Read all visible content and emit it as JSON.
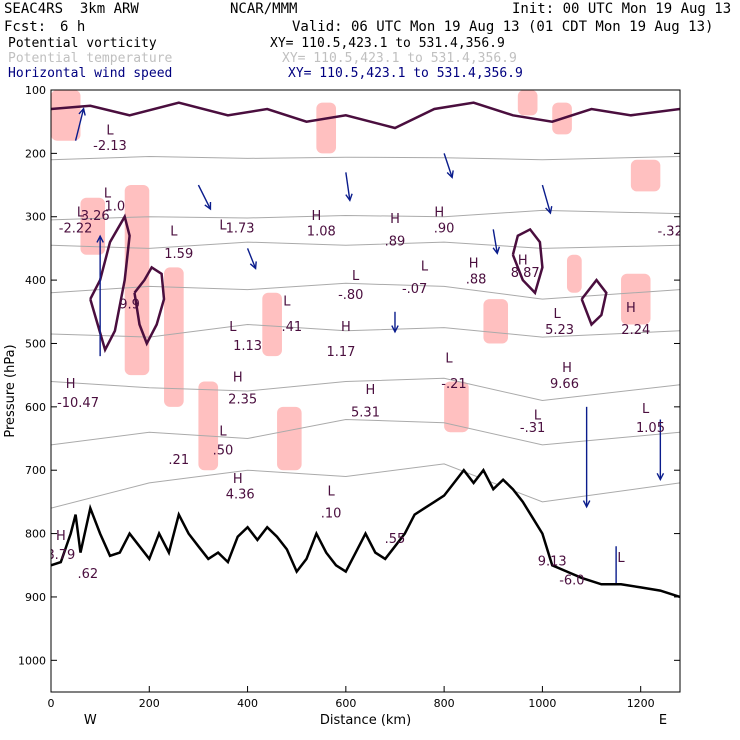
{
  "header": {
    "model": "SEAC4RS  3km ARW",
    "center": "NCAR/MMM",
    "init": "Init: 00 UTC Mon 19 Aug 13",
    "fcst_label": "Fcst:",
    "fcst_value": "6 h",
    "valid": "Valid: 06 UTC Mon 19 Aug 13 (01 CDT Mon 19 Aug 13)",
    "fields": [
      {
        "name": "Potential vorticity",
        "xy": "XY= 110.5,423.1 to 531.4,356.9",
        "color": "#000000"
      },
      {
        "name": "Potential temperature",
        "xy": "XY= 110.5,423.1 to 531.4,356.9",
        "color": "#c0c0c0"
      },
      {
        "name": "Horizontal wind speed",
        "xy": "XY= 110.5,423.1 to 531.4,356.9",
        "color": "#000080"
      }
    ]
  },
  "chart_data": {
    "type": "cross-section",
    "xlabel": "Distance (km)",
    "ylabel": "Pressure (hPa)",
    "xlim": [
      0,
      1280
    ],
    "ylim": [
      1050,
      100
    ],
    "x_ticks": [
      0,
      200,
      400,
      600,
      800,
      1000,
      1200
    ],
    "y_ticks": [
      100,
      200,
      300,
      400,
      500,
      600,
      700,
      800,
      900,
      1000
    ],
    "x_end_labels": {
      "left": "W",
      "right": "E"
    },
    "colors": {
      "pv_contour": "#4a0e3e",
      "pv_fill": "#ffc0c0",
      "theta": "#aaaaaa",
      "wind": "#0a1c8c",
      "terrain": "#000000"
    },
    "terrain": [
      [
        0,
        850
      ],
      [
        20,
        845
      ],
      [
        40,
        800
      ],
      [
        50,
        770
      ],
      [
        60,
        830
      ],
      [
        80,
        760
      ],
      [
        100,
        800
      ],
      [
        120,
        835
      ],
      [
        140,
        830
      ],
      [
        160,
        800
      ],
      [
        180,
        820
      ],
      [
        200,
        840
      ],
      [
        220,
        800
      ],
      [
        240,
        830
      ],
      [
        260,
        770
      ],
      [
        280,
        800
      ],
      [
        300,
        820
      ],
      [
        320,
        840
      ],
      [
        340,
        830
      ],
      [
        360,
        845
      ],
      [
        380,
        805
      ],
      [
        400,
        790
      ],
      [
        420,
        810
      ],
      [
        440,
        790
      ],
      [
        460,
        805
      ],
      [
        480,
        825
      ],
      [
        500,
        860
      ],
      [
        520,
        840
      ],
      [
        540,
        800
      ],
      [
        560,
        830
      ],
      [
        580,
        850
      ],
      [
        600,
        860
      ],
      [
        620,
        830
      ],
      [
        640,
        800
      ],
      [
        660,
        830
      ],
      [
        680,
        840
      ],
      [
        700,
        820
      ],
      [
        720,
        800
      ],
      [
        740,
        770
      ],
      [
        760,
        760
      ],
      [
        780,
        750
      ],
      [
        800,
        740
      ],
      [
        820,
        720
      ],
      [
        840,
        700
      ],
      [
        860,
        720
      ],
      [
        880,
        700
      ],
      [
        900,
        730
      ],
      [
        920,
        715
      ],
      [
        940,
        730
      ],
      [
        960,
        750
      ],
      [
        980,
        775
      ],
      [
        1000,
        800
      ],
      [
        1020,
        850
      ],
      [
        1050,
        860
      ],
      [
        1080,
        870
      ],
      [
        1120,
        880
      ],
      [
        1160,
        880
      ],
      [
        1200,
        885
      ],
      [
        1240,
        890
      ],
      [
        1280,
        900
      ]
    ],
    "theta_levels": [
      {
        "label": "",
        "points": [
          [
            0,
            210
          ],
          [
            200,
            205
          ],
          [
            400,
            208
          ],
          [
            600,
            206
          ],
          [
            800,
            207
          ],
          [
            1000,
            210
          ],
          [
            1280,
            205
          ]
        ]
      },
      {
        "label": "",
        "points": [
          [
            0,
            305
          ],
          [
            200,
            300
          ],
          [
            400,
            302
          ],
          [
            600,
            298
          ],
          [
            800,
            300
          ],
          [
            1000,
            290
          ],
          [
            1280,
            295
          ]
        ]
      },
      {
        "label": "",
        "points": [
          [
            0,
            345
          ],
          [
            200,
            350
          ],
          [
            400,
            340
          ],
          [
            600,
            345
          ],
          [
            800,
            340
          ],
          [
            1000,
            350
          ],
          [
            1280,
            345
          ]
        ]
      },
      {
        "label": "",
        "points": [
          [
            0,
            420
          ],
          [
            200,
            410
          ],
          [
            400,
            415
          ],
          [
            600,
            405
          ],
          [
            800,
            410
          ],
          [
            1000,
            430
          ],
          [
            1280,
            415
          ]
        ]
      },
      {
        "label": "",
        "points": [
          [
            0,
            485
          ],
          [
            200,
            490
          ],
          [
            400,
            470
          ],
          [
            600,
            480
          ],
          [
            800,
            475
          ],
          [
            1000,
            490
          ],
          [
            1280,
            480
          ]
        ]
      },
      {
        "label": "",
        "points": [
          [
            0,
            560
          ],
          [
            200,
            570
          ],
          [
            400,
            575
          ],
          [
            600,
            560
          ],
          [
            800,
            555
          ],
          [
            1000,
            590
          ],
          [
            1280,
            565
          ]
        ]
      },
      {
        "label": "",
        "points": [
          [
            0,
            660
          ],
          [
            200,
            640
          ],
          [
            400,
            650
          ],
          [
            600,
            620
          ],
          [
            800,
            625
          ],
          [
            1000,
            660
          ],
          [
            1280,
            640
          ]
        ]
      },
      {
        "label": "",
        "points": [
          [
            0,
            760
          ],
          [
            200,
            720
          ],
          [
            400,
            700
          ],
          [
            600,
            710
          ],
          [
            800,
            690
          ],
          [
            1000,
            750
          ],
          [
            1280,
            720
          ]
        ]
      }
    ],
    "pv_fill_regions": [
      {
        "x": [
          0,
          60
        ],
        "p": [
          100,
          180
        ]
      },
      {
        "x": [
          60,
          110
        ],
        "p": [
          270,
          360
        ]
      },
      {
        "x": [
          150,
          200
        ],
        "p": [
          250,
          550
        ]
      },
      {
        "x": [
          230,
          270
        ],
        "p": [
          380,
          600
        ]
      },
      {
        "x": [
          300,
          340
        ],
        "p": [
          560,
          700
        ]
      },
      {
        "x": [
          430,
          470
        ],
        "p": [
          420,
          520
        ]
      },
      {
        "x": [
          460,
          510
        ],
        "p": [
          600,
          700
        ]
      },
      {
        "x": [
          540,
          580
        ],
        "p": [
          120,
          200
        ]
      },
      {
        "x": [
          800,
          850
        ],
        "p": [
          560,
          640
        ]
      },
      {
        "x": [
          880,
          930
        ],
        "p": [
          430,
          500
        ]
      },
      {
        "x": [
          950,
          990
        ],
        "p": [
          100,
          140
        ]
      },
      {
        "x": [
          1050,
          1080
        ],
        "p": [
          360,
          420
        ]
      },
      {
        "x": [
          1160,
          1220
        ],
        "p": [
          390,
          470
        ]
      },
      {
        "x": [
          1180,
          1240
        ],
        "p": [
          210,
          260
        ]
      },
      {
        "x": [
          1020,
          1060
        ],
        "p": [
          120,
          170
        ]
      }
    ],
    "pv_contours": [
      [
        [
          80,
          430
        ],
        [
          95,
          470
        ],
        [
          110,
          510
        ],
        [
          130,
          480
        ],
        [
          150,
          400
        ],
        [
          160,
          330
        ],
        [
          150,
          300
        ],
        [
          120,
          340
        ],
        [
          100,
          400
        ],
        [
          80,
          430
        ]
      ],
      [
        [
          170,
          420
        ],
        [
          180,
          470
        ],
        [
          195,
          500
        ],
        [
          215,
          470
        ],
        [
          230,
          430
        ],
        [
          225,
          390
        ],
        [
          205,
          380
        ],
        [
          190,
          400
        ],
        [
          170,
          420
        ]
      ],
      [
        [
          940,
          360
        ],
        [
          960,
          400
        ],
        [
          985,
          420
        ],
        [
          1000,
          380
        ],
        [
          995,
          340
        ],
        [
          975,
          320
        ],
        [
          950,
          330
        ],
        [
          940,
          360
        ]
      ],
      [
        [
          1080,
          430
        ],
        [
          1100,
          470
        ],
        [
          1120,
          455
        ],
        [
          1130,
          420
        ],
        [
          1110,
          400
        ],
        [
          1080,
          430
        ]
      ],
      [
        [
          0,
          130
        ],
        [
          80,
          125
        ],
        [
          160,
          140
        ],
        [
          260,
          120
        ],
        [
          360,
          140
        ],
        [
          440,
          130
        ],
        [
          520,
          150
        ],
        [
          600,
          140
        ],
        [
          700,
          160
        ],
        [
          780,
          130
        ],
        [
          860,
          120
        ],
        [
          940,
          140
        ],
        [
          1020,
          150
        ],
        [
          1100,
          130
        ],
        [
          1180,
          140
        ],
        [
          1280,
          130
        ]
      ]
    ],
    "wind_vectors": [
      {
        "x": 50,
        "p": 180,
        "u": 2,
        "v": -8
      },
      {
        "x": 100,
        "p": 520,
        "u": 0,
        "v": -30
      },
      {
        "x": 180,
        "p": 860,
        "u": 0,
        "v": 30
      },
      {
        "x": 300,
        "p": 250,
        "u": 3,
        "v": 6
      },
      {
        "x": 400,
        "p": 350,
        "u": 2,
        "v": 5
      },
      {
        "x": 500,
        "p": 880,
        "u": 0,
        "v": 10
      },
      {
        "x": 600,
        "p": 230,
        "u": 1,
        "v": 7
      },
      {
        "x": 700,
        "p": 450,
        "u": 0,
        "v": 5
      },
      {
        "x": 800,
        "p": 200,
        "u": 2,
        "v": 6
      },
      {
        "x": 900,
        "p": 320,
        "u": 1,
        "v": 6
      },
      {
        "x": 1000,
        "p": 250,
        "u": 2,
        "v": 7
      },
      {
        "x": 1090,
        "p": 600,
        "u": 0,
        "v": 25
      },
      {
        "x": 1150,
        "p": 820,
        "u": 0,
        "v": 14
      },
      {
        "x": 1240,
        "p": 620,
        "u": 0,
        "v": 15
      }
    ],
    "annotations": [
      {
        "text": "L",
        "x": 120,
        "p": 170
      },
      {
        "text": "-2.13",
        "x": 120,
        "p": 195
      },
      {
        "text": "L",
        "x": 115,
        "p": 270
      },
      {
        "text": "1.0",
        "x": 130,
        "p": 290
      },
      {
        "text": "L",
        "x": 60,
        "p": 300
      },
      {
        "text": "3.26",
        "x": 90,
        "p": 305
      },
      {
        "text": "-2.22",
        "x": 50,
        "p": 325
      },
      {
        "text": "L",
        "x": 250,
        "p": 330
      },
      {
        "text": "1.59",
        "x": 260,
        "p": 365
      },
      {
        "text": "L",
        "x": 350,
        "p": 320
      },
      {
        "text": "-1.73",
        "x": 380,
        "p": 325
      },
      {
        "text": "H",
        "x": 540,
        "p": 305
      },
      {
        "text": "1.08",
        "x": 550,
        "p": 330
      },
      {
        "text": "H",
        "x": 700,
        "p": 310
      },
      {
        "text": ".89",
        "x": 700,
        "p": 345
      },
      {
        "text": "H",
        "x": 790,
        "p": 300
      },
      {
        "text": ".90",
        "x": 800,
        "p": 325
      },
      {
        "text": "H",
        "x": 860,
        "p": 380
      },
      {
        "text": ".88",
        "x": 865,
        "p": 405
      },
      {
        "text": "H",
        "x": 960,
        "p": 375
      },
      {
        "text": "8.87",
        "x": 965,
        "p": 395
      },
      {
        "text": "L",
        "x": 760,
        "p": 385
      },
      {
        "text": "-.07",
        "x": 740,
        "p": 420
      },
      {
        "text": "L",
        "x": 620,
        "p": 400
      },
      {
        "text": "-.80",
        "x": 610,
        "p": 430
      },
      {
        "text": "L",
        "x": 480,
        "p": 440
      },
      {
        "text": ".41",
        "x": 490,
        "p": 480
      },
      {
        "text": "9.9",
        "x": 160,
        "p": 445
      },
      {
        "text": "L",
        "x": 370,
        "p": 480
      },
      {
        "text": "1.13",
        "x": 400,
        "p": 510
      },
      {
        "text": "H",
        "x": 600,
        "p": 480
      },
      {
        "text": "1.17",
        "x": 590,
        "p": 520
      },
      {
        "text": "H",
        "x": 40,
        "p": 570
      },
      {
        "text": "-10.47",
        "x": 55,
        "p": 600
      },
      {
        "text": "H",
        "x": 380,
        "p": 560
      },
      {
        "text": "2.35",
        "x": 390,
        "p": 595
      },
      {
        "text": "H",
        "x": 650,
        "p": 580
      },
      {
        "text": "5.31",
        "x": 640,
        "p": 615
      },
      {
        "text": "L",
        "x": 810,
        "p": 530
      },
      {
        "text": "-.21",
        "x": 820,
        "p": 570
      },
      {
        "text": "L",
        "x": 1030,
        "p": 460
      },
      {
        "text": "5.23",
        "x": 1035,
        "p": 485
      },
      {
        "text": "H",
        "x": 1180,
        "p": 450
      },
      {
        "text": "2.24",
        "x": 1190,
        "p": 485
      },
      {
        "text": "H",
        "x": 1050,
        "p": 545
      },
      {
        "text": "9.66",
        "x": 1045,
        "p": 570
      },
      {
        "text": "L",
        "x": 990,
        "p": 620
      },
      {
        "text": "-.31",
        "x": 980,
        "p": 640
      },
      {
        "text": "L",
        "x": 1210,
        "p": 610
      },
      {
        "text": "1.05",
        "x": 1220,
        "p": 640
      },
      {
        "text": "L",
        "x": 350,
        "p": 645
      },
      {
        "text": ".50",
        "x": 350,
        "p": 675
      },
      {
        "text": ".21",
        "x": 260,
        "p": 690
      },
      {
        "text": "H",
        "x": 380,
        "p": 720
      },
      {
        "text": "4.36",
        "x": 385,
        "p": 745
      },
      {
        "text": "L",
        "x": 570,
        "p": 740
      },
      {
        "text": ".10",
        "x": 570,
        "p": 775
      },
      {
        "text": ".55",
        "x": 700,
        "p": 815
      },
      {
        "text": "H",
        "x": 20,
        "p": 810
      },
      {
        "text": "8.79",
        "x": 20,
        "p": 840
      },
      {
        "text": ".62",
        "x": 75,
        "p": 870
      },
      {
        "text": "9.13",
        "x": 1020,
        "p": 850
      },
      {
        "text": "-6.0",
        "x": 1060,
        "p": 880
      },
      {
        "text": "L",
        "x": 1160,
        "p": 845
      },
      {
        "text": "-.32",
        "x": 1260,
        "p": 330
      }
    ]
  }
}
